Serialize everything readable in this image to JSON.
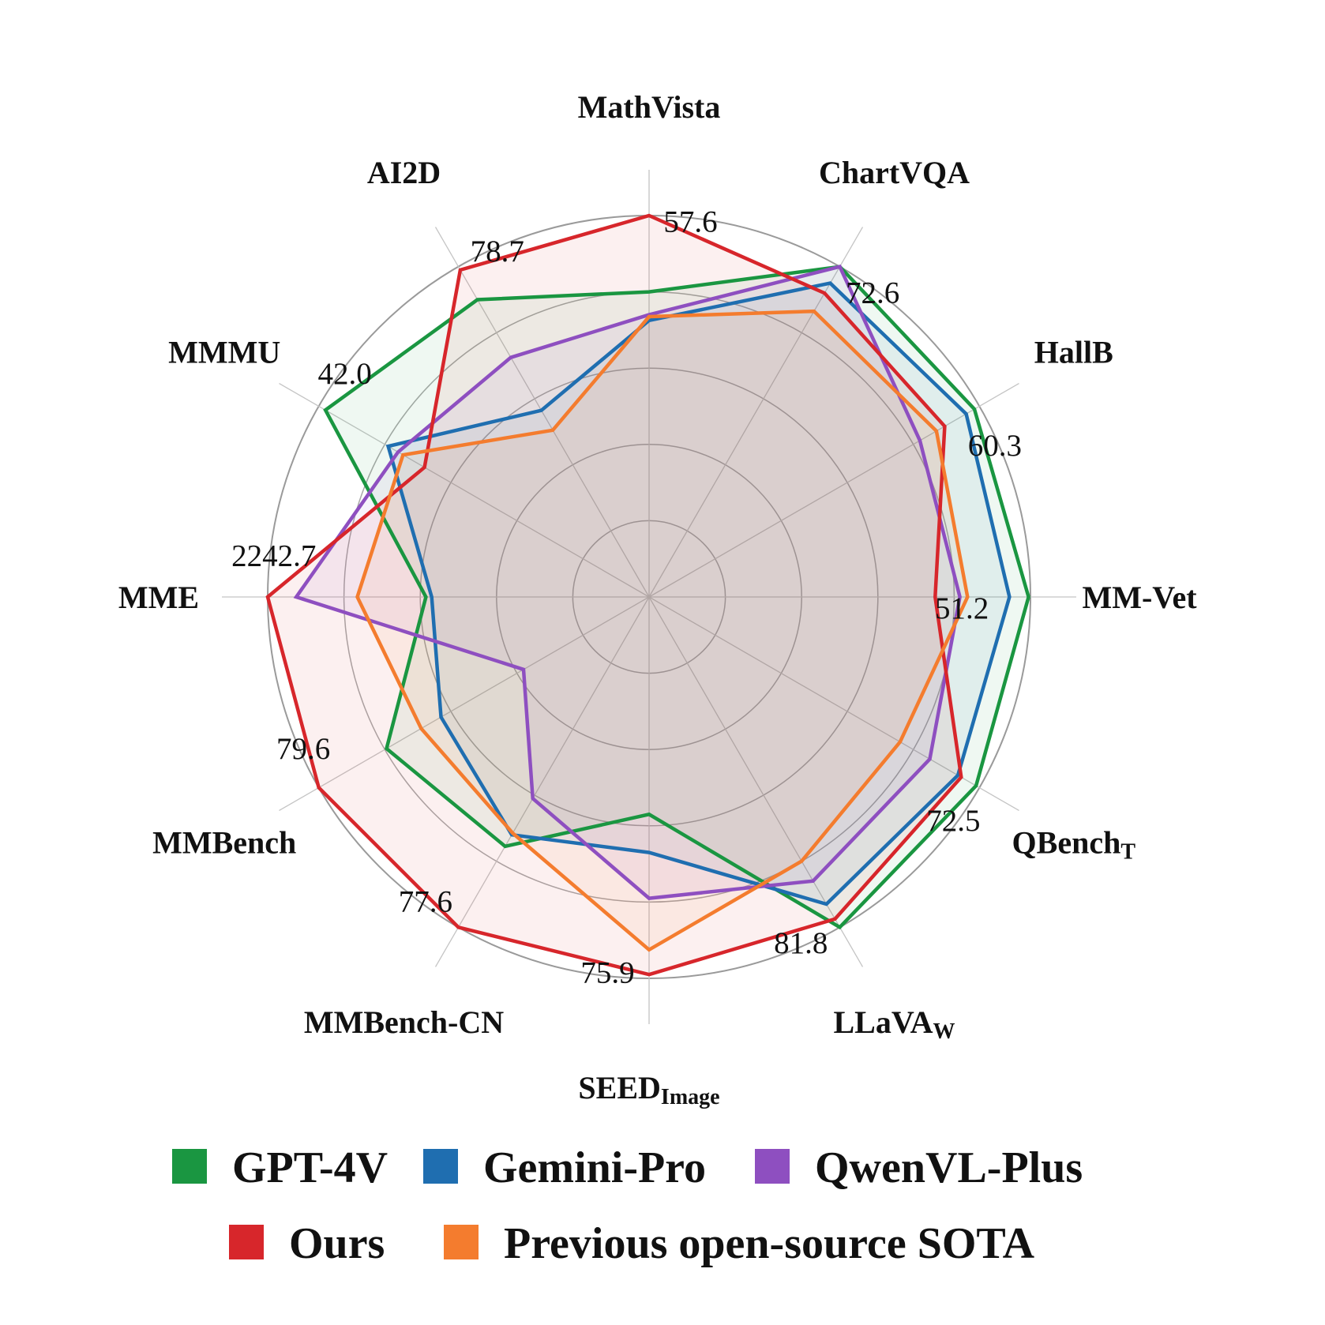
{
  "chart_data": {
    "type": "radar",
    "axes": [
      {
        "name": "MathVista",
        "sub": "",
        "max_label": "57.6"
      },
      {
        "name": "ChartVQA",
        "sub": "",
        "max_label": "72.6"
      },
      {
        "name": "HallB",
        "sub": "",
        "max_label": "60.3"
      },
      {
        "name": "MM-Vet",
        "sub": "",
        "max_label": "51.2"
      },
      {
        "name": "QBench",
        "sub": "T",
        "max_label": "72.5"
      },
      {
        "name": "LLaVA",
        "sub": "W",
        "max_label": "81.8"
      },
      {
        "name": "SEED",
        "sub": "Image",
        "max_label": "75.9"
      },
      {
        "name": "MMBench-CN",
        "sub": "",
        "max_label": "77.6"
      },
      {
        "name": "MMBench",
        "sub": "",
        "max_label": "79.6"
      },
      {
        "name": "MME",
        "sub": "",
        "max_label": "2242.7"
      },
      {
        "name": "MMMU",
        "sub": "",
        "max_label": "42.0"
      },
      {
        "name": "AI2D",
        "sub": "",
        "max_label": "78.7"
      }
    ],
    "radial_scale": [
      0,
      1
    ],
    "rings": [
      0.2,
      0.4,
      0.6,
      0.8,
      1.0
    ],
    "series": [
      {
        "name": "GPT-4V",
        "color": "#1a9641",
        "values": [
          0.8,
          1.0,
          0.985,
          0.995,
          0.99,
          1.0,
          0.57,
          0.755,
          0.795,
          0.585,
          0.98,
          0.9
        ]
      },
      {
        "name": "Gemini-Pro",
        "color": "#1f6eb0",
        "values": [
          0.725,
          0.95,
          0.96,
          0.945,
          0.935,
          0.93,
          0.67,
          0.72,
          0.63,
          0.57,
          0.79,
          0.565
        ]
      },
      {
        "name": "QwenVL-Plus",
        "color": "#8e4fc0",
        "values": [
          0.74,
          1.0,
          0.82,
          0.815,
          0.85,
          0.86,
          0.79,
          0.61,
          0.38,
          0.925,
          0.76,
          0.725
        ]
      },
      {
        "name": "Ours",
        "color": "#d7262b",
        "values": [
          1.0,
          0.92,
          0.895,
          0.75,
          0.945,
          0.975,
          0.99,
          1.0,
          1.0,
          1.0,
          0.68,
          0.99
        ]
      },
      {
        "name": "Previous open-source SOTA",
        "color": "#f47c2e",
        "values": [
          0.735,
          0.865,
          0.87,
          0.835,
          0.76,
          0.8,
          0.925,
          0.715,
          0.69,
          0.765,
          0.745,
          0.505
        ]
      }
    ],
    "legend": {
      "placement": "bottom",
      "rows": [
        [
          "GPT-4V",
          "Gemini-Pro",
          "QwenVL-Plus"
        ],
        [
          "Ours",
          "Previous open-source SOTA"
        ]
      ]
    }
  }
}
